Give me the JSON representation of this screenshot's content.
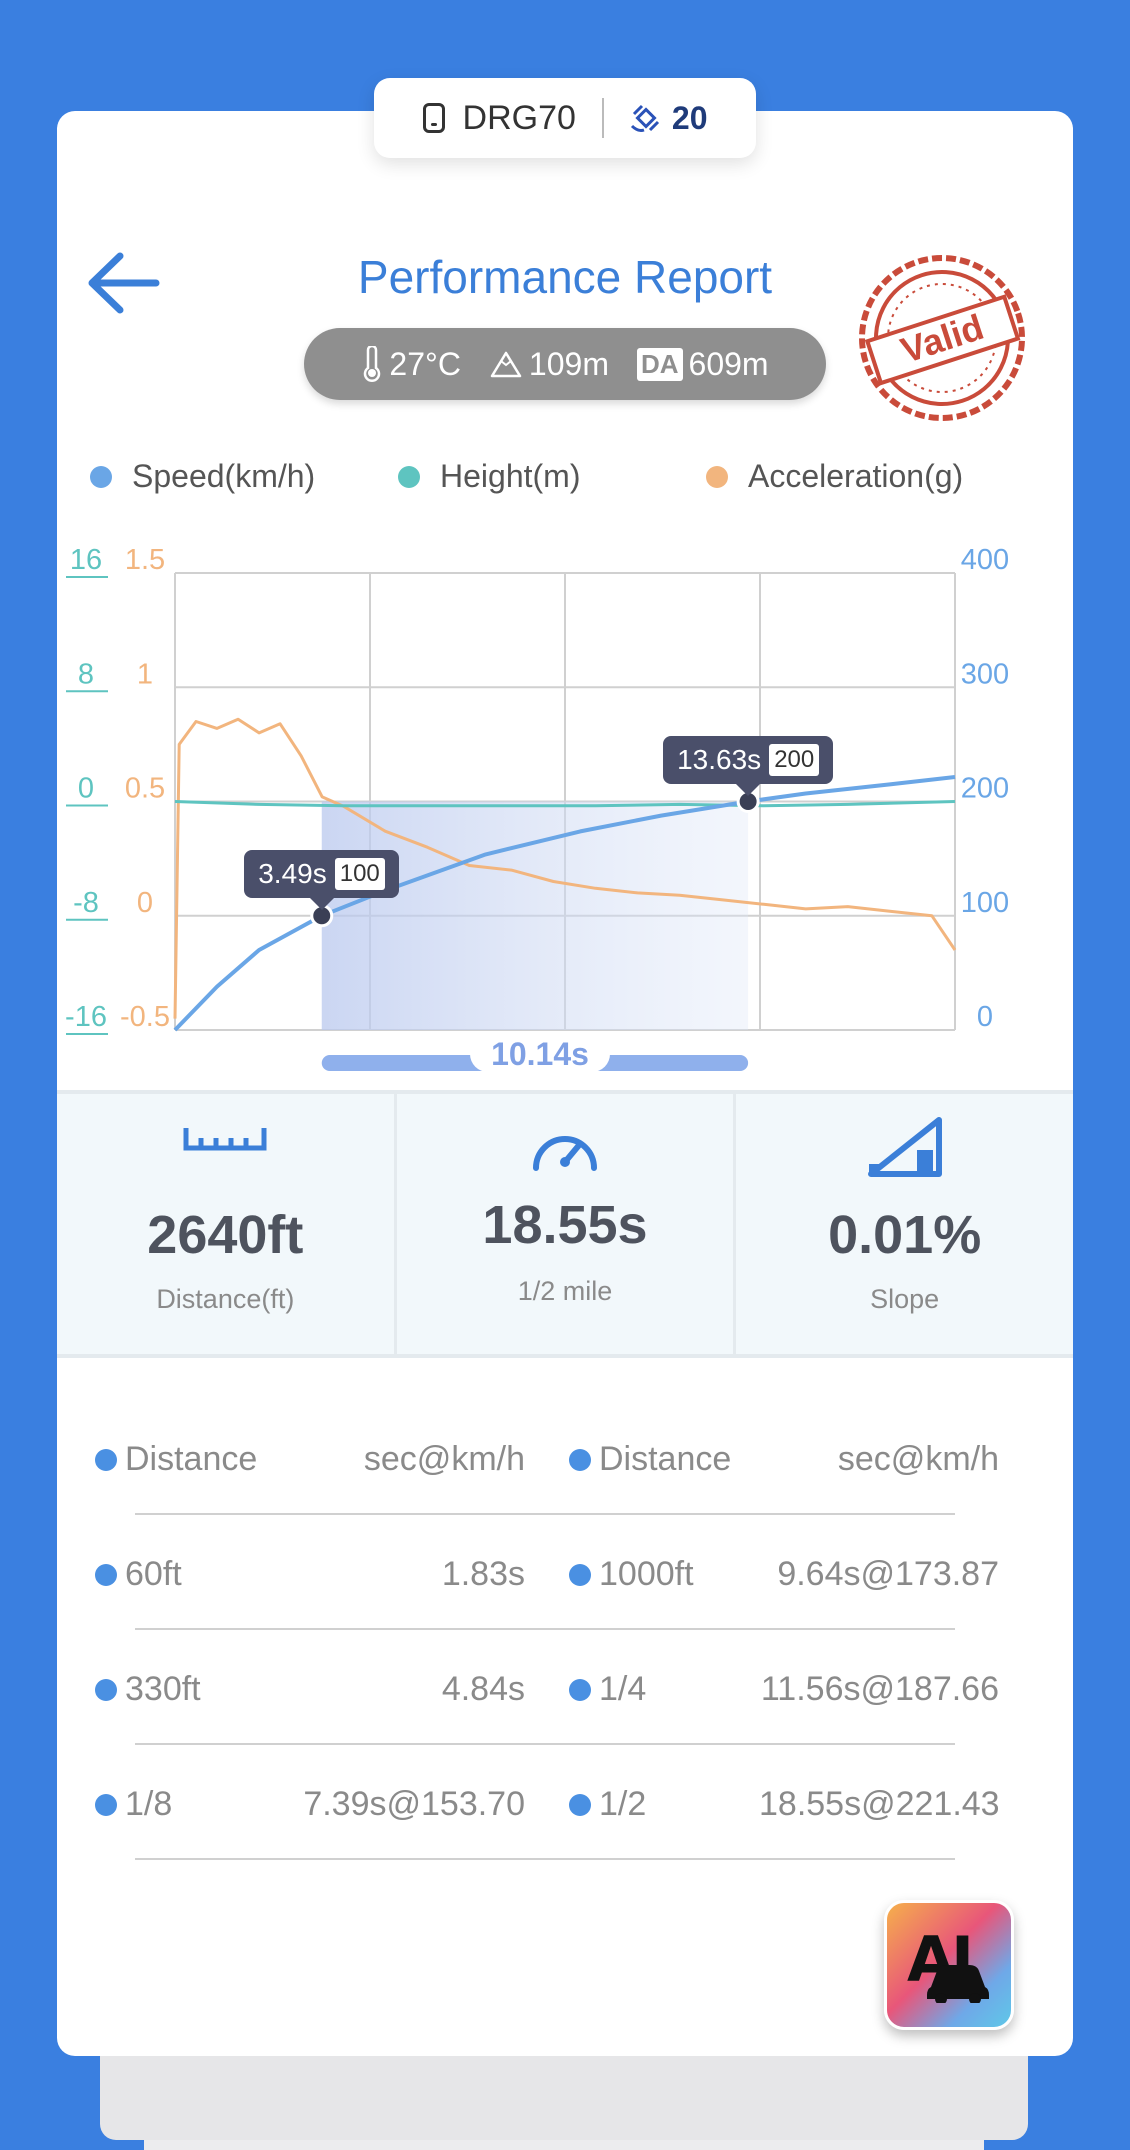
{
  "device": {
    "name": "DRG70",
    "satellites": "20",
    "device_icon": "phone-icon",
    "satellite_icon": "satellite-icon"
  },
  "header": {
    "title": "Performance Report",
    "back_icon": "back-arrow-icon",
    "stamp_text": "Valid"
  },
  "conditions": {
    "temperature": "27°C",
    "altitude": "109m",
    "density_altitude_label": "DA",
    "density_altitude": "609m"
  },
  "legend": [
    {
      "label": "Speed(km/h)",
      "color": "#6aa6e6"
    },
    {
      "label": "Height(m)",
      "color": "#5ec4c0"
    },
    {
      "label": "Acceleration(g)",
      "color": "#f2b57e"
    }
  ],
  "chart_data": {
    "type": "line",
    "x_range_s": [
      0,
      18.55
    ],
    "axes": {
      "height_ticks": [
        "16",
        "8",
        "0",
        "-8",
        "-16"
      ],
      "accel_ticks": [
        "1.5",
        "1",
        "0.5",
        "0",
        "-0.5"
      ],
      "speed_ticks": [
        "400",
        "300",
        "200",
        "100",
        "0"
      ],
      "height_range": [
        -16,
        16
      ],
      "accel_range": [
        -0.5,
        1.5
      ],
      "speed_range": [
        0,
        400
      ]
    },
    "series": [
      {
        "name": "Speed(km/h)",
        "x": [
          0,
          1,
          2,
          3.49,
          5,
          7.39,
          9.64,
          11.56,
          13.63,
          15,
          17,
          18.55
        ],
        "values": [
          0,
          38,
          70,
          100,
          122,
          153.7,
          173.87,
          187.66,
          200,
          207,
          215,
          221.43
        ]
      },
      {
        "name": "Height(m)",
        "x": [
          0,
          2,
          4,
          6,
          8,
          10,
          12,
          14,
          16,
          18.55
        ],
        "values": [
          0,
          -0.2,
          -0.3,
          -0.3,
          -0.3,
          -0.3,
          -0.2,
          -0.3,
          -0.2,
          0
        ]
      },
      {
        "name": "Acceleration(g)",
        "x": [
          0,
          0.1,
          0.5,
          1,
          1.5,
          2,
          2.5,
          3,
          3.5,
          4,
          5,
          6,
          7,
          8,
          9,
          10,
          11,
          12,
          13,
          14,
          15,
          16,
          17,
          18,
          18.55
        ],
        "values": [
          -0.45,
          0.75,
          0.85,
          0.82,
          0.86,
          0.8,
          0.84,
          0.7,
          0.52,
          0.48,
          0.37,
          0.3,
          0.22,
          0.2,
          0.15,
          0.12,
          0.1,
          0.09,
          0.07,
          0.05,
          0.03,
          0.04,
          0.02,
          0.0,
          -0.15
        ]
      }
    ],
    "markers": [
      {
        "time": "3.49s",
        "speed": "100",
        "x": 3.49,
        "y": 100
      },
      {
        "time": "13.63s",
        "speed": "200",
        "x": 13.63,
        "y": 200
      }
    ],
    "span_label": "10.14s"
  },
  "stats": [
    {
      "icon": "ruler-icon",
      "value": "2640ft",
      "label": "Distance(ft)"
    },
    {
      "icon": "speedometer-icon",
      "value": "18.55s",
      "label": "1/2 mile"
    },
    {
      "icon": "slope-icon",
      "value": "0.01%",
      "label": "Slope"
    }
  ],
  "table": {
    "header": {
      "left_col": "Distance",
      "left_val": "sec@km/h",
      "right_col": "Distance",
      "right_val": "sec@km/h"
    },
    "rows": [
      {
        "left_dist": "60ft",
        "left_val": "1.83s",
        "right_dist": "1000ft",
        "right_val": "9.64s@173.87"
      },
      {
        "left_dist": "330ft",
        "left_val": "4.84s",
        "right_dist": "1/4",
        "right_val": "11.56s@187.66"
      },
      {
        "left_dist": "1/8",
        "left_val": "7.39s@153.70",
        "right_dist": "1/2",
        "right_val": "18.55s@221.43"
      }
    ]
  },
  "ai_button": {
    "label": "AI"
  }
}
